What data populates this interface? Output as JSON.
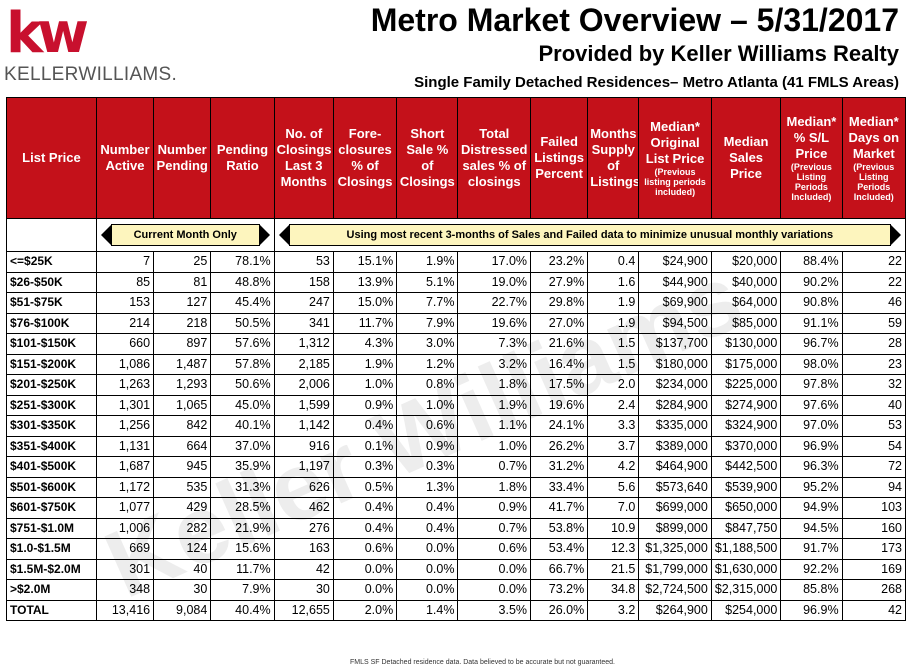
{
  "logo": {
    "mark": "kw",
    "brand": "KELLERWILLIAMS."
  },
  "title": "Metro Market Overview – 5/31/2017",
  "subtitle": "Provided by Keller Williams Realty",
  "subtitle2": "Single Family Detached Residences– Metro Atlanta (41 FMLS Areas)",
  "watermark": "Keller Williams",
  "headers": [
    {
      "label": "List Price",
      "sub": ""
    },
    {
      "label": "Number Active",
      "sub": ""
    },
    {
      "label": "Number Pending",
      "sub": ""
    },
    {
      "label": "Pending Ratio",
      "sub": ""
    },
    {
      "label": "No. of Closings Last 3 Months",
      "sub": ""
    },
    {
      "label": "Fore-closures % of Closings",
      "sub": ""
    },
    {
      "label": "Short Sale % of Closings",
      "sub": ""
    },
    {
      "label": "Total Distressed sales % of closings",
      "sub": ""
    },
    {
      "label": "Failed Listings Percent",
      "sub": ""
    },
    {
      "label": "Months Supply of Listings",
      "sub": ""
    },
    {
      "label": "Median* Original List Price",
      "sub": "(Previous listing periods included)"
    },
    {
      "label": "Median Sales Price",
      "sub": ""
    },
    {
      "label": "Median* % S/L Price",
      "sub": "(Previous Listing Periods Included)"
    },
    {
      "label": "Median* Days on Market",
      "sub": "(Previous Listing Periods Included)"
    }
  ],
  "band": {
    "left": "Current Month Only",
    "right": "Using most recent 3-months of Sales and Failed data to minimize unusual monthly variations"
  },
  "rows": [
    [
      "<=$25K",
      "7",
      "25",
      "78.1%",
      "53",
      "15.1%",
      "1.9%",
      "17.0%",
      "23.2%",
      "0.4",
      "$24,900",
      "$20,000",
      "88.4%",
      "22"
    ],
    [
      "$26-$50K",
      "85",
      "81",
      "48.8%",
      "158",
      "13.9%",
      "5.1%",
      "19.0%",
      "27.9%",
      "1.6",
      "$44,900",
      "$40,000",
      "90.2%",
      "22"
    ],
    [
      "$51-$75K",
      "153",
      "127",
      "45.4%",
      "247",
      "15.0%",
      "7.7%",
      "22.7%",
      "29.8%",
      "1.9",
      "$69,900",
      "$64,000",
      "90.8%",
      "46"
    ],
    [
      "$76-$100K",
      "214",
      "218",
      "50.5%",
      "341",
      "11.7%",
      "7.9%",
      "19.6%",
      "27.0%",
      "1.9",
      "$94,500",
      "$85,000",
      "91.1%",
      "59"
    ],
    [
      "$101-$150K",
      "660",
      "897",
      "57.6%",
      "1,312",
      "4.3%",
      "3.0%",
      "7.3%",
      "21.6%",
      "1.5",
      "$137,700",
      "$130,000",
      "96.7%",
      "28"
    ],
    [
      "$151-$200K",
      "1,086",
      "1,487",
      "57.8%",
      "2,185",
      "1.9%",
      "1.2%",
      "3.2%",
      "16.4%",
      "1.5",
      "$180,000",
      "$175,000",
      "98.0%",
      "23"
    ],
    [
      "$201-$250K",
      "1,263",
      "1,293",
      "50.6%",
      "2,006",
      "1.0%",
      "0.8%",
      "1.8%",
      "17.5%",
      "2.0",
      "$234,000",
      "$225,000",
      "97.8%",
      "32"
    ],
    [
      "$251-$300K",
      "1,301",
      "1,065",
      "45.0%",
      "1,599",
      "0.9%",
      "1.0%",
      "1.9%",
      "19.6%",
      "2.4",
      "$284,900",
      "$274,900",
      "97.6%",
      "40"
    ],
    [
      "$301-$350K",
      "1,256",
      "842",
      "40.1%",
      "1,142",
      "0.4%",
      "0.6%",
      "1.1%",
      "24.1%",
      "3.3",
      "$335,000",
      "$324,900",
      "97.0%",
      "53"
    ],
    [
      "$351-$400K",
      "1,131",
      "664",
      "37.0%",
      "916",
      "0.1%",
      "0.9%",
      "1.0%",
      "26.2%",
      "3.7",
      "$389,000",
      "$370,000",
      "96.9%",
      "54"
    ],
    [
      "$401-$500K",
      "1,687",
      "945",
      "35.9%",
      "1,197",
      "0.3%",
      "0.3%",
      "0.7%",
      "31.2%",
      "4.2",
      "$464,900",
      "$442,500",
      "96.3%",
      "72"
    ],
    [
      "$501-$600K",
      "1,172",
      "535",
      "31.3%",
      "626",
      "0.5%",
      "1.3%",
      "1.8%",
      "33.4%",
      "5.6",
      "$573,640",
      "$539,900",
      "95.2%",
      "94"
    ],
    [
      "$601-$750K",
      "1,077",
      "429",
      "28.5%",
      "462",
      "0.4%",
      "0.4%",
      "0.9%",
      "41.7%",
      "7.0",
      "$699,000",
      "$650,000",
      "94.9%",
      "103"
    ],
    [
      "$751-$1.0M",
      "1,006",
      "282",
      "21.9%",
      "276",
      "0.4%",
      "0.4%",
      "0.7%",
      "53.8%",
      "10.9",
      "$899,000",
      "$847,750",
      "94.5%",
      "160"
    ],
    [
      "$1.0-$1.5M",
      "669",
      "124",
      "15.6%",
      "163",
      "0.6%",
      "0.0%",
      "0.6%",
      "53.4%",
      "12.3",
      "$1,325,000",
      "$1,188,500",
      "91.7%",
      "173"
    ],
    [
      "$1.5M-$2.0M",
      "301",
      "40",
      "11.7%",
      "42",
      "0.0%",
      "0.0%",
      "0.0%",
      "66.7%",
      "21.5",
      "$1,799,000",
      "$1,630,000",
      "92.2%",
      "169"
    ],
    [
      ">$2.0M",
      "348",
      "30",
      "7.9%",
      "30",
      "0.0%",
      "0.0%",
      "0.0%",
      "73.2%",
      "34.8",
      "$2,724,500",
      "$2,315,000",
      "85.8%",
      "268"
    ],
    [
      "TOTAL",
      "13,416",
      "9,084",
      "40.4%",
      "12,655",
      "2.0%",
      "1.4%",
      "3.5%",
      "26.0%",
      "3.2",
      "$264,900",
      "$254,000",
      "96.9%",
      "42"
    ]
  ],
  "footnote": "FMLS SF Detached residence data. Data believed to be accurate but not guaranteed."
}
